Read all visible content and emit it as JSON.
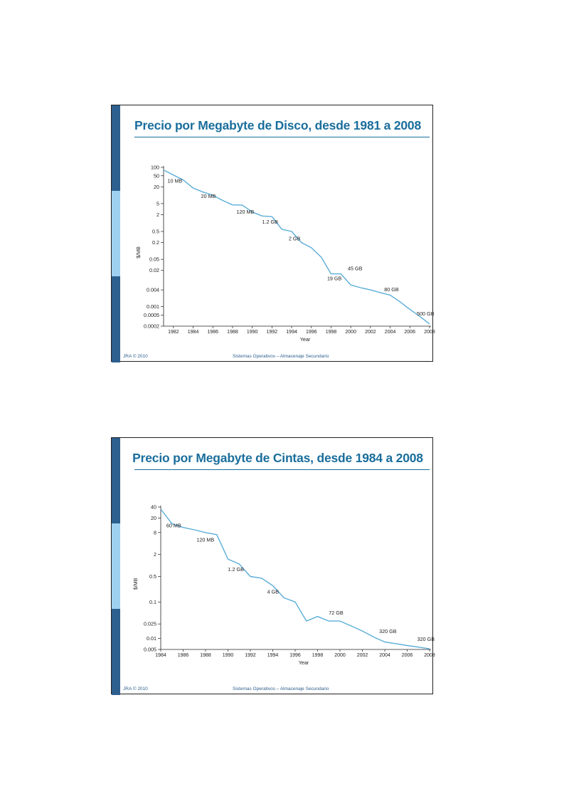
{
  "colors": {
    "title": "#1a6e9c",
    "rule": "#1a6e9c",
    "line": "#5aaed8",
    "bar_dark": "#2d5f8f",
    "bar_light": "#9fd0f0",
    "footer": "#2d5f8f",
    "axis": "#222222"
  },
  "slides": [
    {
      "title": "Precio por Megabyte de Disco, desde 1981 a 2008",
      "footer_left": "JRA © 2010",
      "footer_center": "Sistemas Operativos – Almacenaje Secundario"
    },
    {
      "title": "Precio por Megabyte de Cintas, desde 1984 a 2008",
      "footer_left": "JRA © 2010",
      "footer_center": "Sistemas Operativos – Almacenaje Secundario"
    }
  ],
  "chart_data": [
    {
      "type": "line",
      "scale_y": "log",
      "xlabel": "Year",
      "ylabel": "$/MB",
      "xlim": [
        1981,
        2008
      ],
      "ylim": [
        0.0002,
        100
      ],
      "x_ticks": [
        "1982",
        "1984",
        "1986",
        "1988",
        "1990",
        "1992",
        "1994",
        "1996",
        "1998",
        "2000",
        "2002",
        "2004",
        "2006",
        "2008"
      ],
      "y_ticks": [
        "100",
        "50",
        "20",
        "5",
        "2",
        "0.5",
        "0.2",
        "0.05",
        "0.02",
        "0.004",
        "0.001",
        "0.0005",
        "0.0002"
      ],
      "x": [
        1981,
        1983,
        1984,
        1985,
        1986,
        1987,
        1988,
        1989,
        1990,
        1991,
        1992,
        1993,
        1994,
        1995,
        1996,
        1997,
        1998,
        1999,
        2000,
        2001,
        2002,
        2003,
        2004,
        2005,
        2006,
        2007,
        2008
      ],
      "y": [
        80,
        35,
        18,
        13,
        10,
        6.5,
        4.5,
        4.4,
        2.5,
        1.8,
        1.7,
        0.6,
        0.5,
        0.2,
        0.13,
        0.06,
        0.015,
        0.015,
        0.006,
        0.0048,
        0.004,
        0.0032,
        0.0026,
        0.0015,
        0.0008,
        0.00045,
        0.00024
      ],
      "annotations": [
        {
          "text": "10 MB",
          "x": 1981.4,
          "y": 28
        },
        {
          "text": "20 MB",
          "x": 1984.8,
          "y": 8
        },
        {
          "text": "120 MB",
          "x": 1988.4,
          "y": 2.2
        },
        {
          "text": "1.2 GB",
          "x": 1991.0,
          "y": 0.95
        },
        {
          "text": "2 GB",
          "x": 1993.7,
          "y": 0.24
        },
        {
          "text": "19 GB",
          "x": 1997.6,
          "y": 0.009
        },
        {
          "text": "45 GB",
          "x": 1999.7,
          "y": 0.02
        },
        {
          "text": "80 GB",
          "x": 2003.4,
          "y": 0.0036
        },
        {
          "text": "500 GB",
          "x": 2006.7,
          "y": 0.00048
        }
      ]
    },
    {
      "type": "line",
      "scale_y": "log",
      "xlabel": "Year",
      "ylabel": "$/MB",
      "xlim": [
        1984,
        2008
      ],
      "ylim": [
        0.005,
        40
      ],
      "x_ticks": [
        "1984",
        "1986",
        "1988",
        "1990",
        "1992",
        "1994",
        "1996",
        "1998",
        "2000",
        "2002",
        "2004",
        "2006",
        "2008"
      ],
      "y_ticks": [
        "40",
        "20",
        "8",
        "2",
        "0.5",
        "0.1",
        "0.025",
        "0.01",
        "0.005"
      ],
      "x": [
        1984,
        1985,
        1986,
        1987,
        1988,
        1989,
        1990,
        1991,
        1992,
        1993,
        1994,
        1995,
        1996,
        1997,
        1998,
        1999,
        2000,
        2001,
        2002,
        2003,
        2004,
        2005,
        2006,
        2007,
        2008
      ],
      "y": [
        35,
        14,
        11,
        9.5,
        8,
        7,
        1.5,
        1.1,
        0.5,
        0.45,
        0.28,
        0.13,
        0.1,
        0.03,
        0.04,
        0.03,
        0.03,
        0.022,
        0.016,
        0.011,
        0.008,
        0.0072,
        0.0064,
        0.0058,
        0.0052
      ],
      "annotations": [
        {
          "text": "60 MB",
          "x": 1984.5,
          "y": 11
        },
        {
          "text": "120 MB",
          "x": 1987.2,
          "y": 4.5
        },
        {
          "text": "1.2 GB",
          "x": 1990.0,
          "y": 0.7
        },
        {
          "text": "4 GB",
          "x": 1993.5,
          "y": 0.17
        },
        {
          "text": "72 GB",
          "x": 1999.0,
          "y": 0.045
        },
        {
          "text": "320 GB",
          "x": 2003.5,
          "y": 0.014
        },
        {
          "text": "320 GB",
          "x": 2006.9,
          "y": 0.0085
        }
      ]
    }
  ]
}
